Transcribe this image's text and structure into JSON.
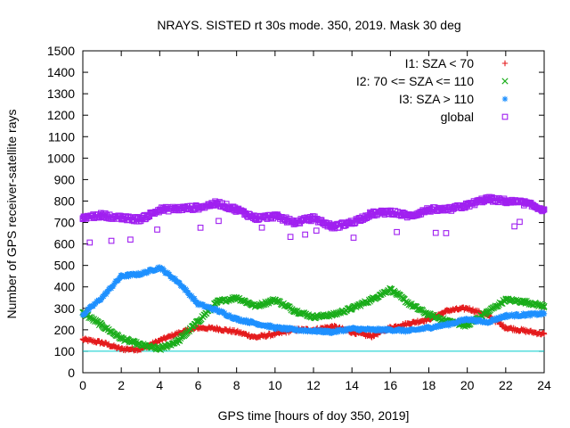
{
  "chart_data": {
    "type": "scatter",
    "title": "NRAYS. SISTED rt 30s mode. 350, 2019. Mask 30 deg",
    "xlabel": "GPS time [hours of doy 350, 2019]",
    "ylabel": "Number of GPS receiver-satellite rays",
    "xlim": [
      0,
      24
    ],
    "ylim": [
      0,
      1500
    ],
    "x_ticks": [
      "0",
      "2",
      "4",
      "6",
      "8",
      "10",
      "12",
      "14",
      "16",
      "18",
      "20",
      "22",
      "24"
    ],
    "y_ticks": [
      "0",
      "100",
      "200",
      "300",
      "400",
      "500",
      "600",
      "700",
      "800",
      "900",
      "1000",
      "1100",
      "1200",
      "1300",
      "1400",
      "1500"
    ],
    "reference_line": {
      "y": 100,
      "color": "#00cccc"
    },
    "legend_position": "top-right",
    "series": [
      {
        "name": "I1: SZA < 70",
        "symbol": "+",
        "color": "#e41a1c",
        "x": [
          0,
          1,
          2,
          3,
          4,
          5,
          6,
          7,
          8,
          9,
          10,
          11,
          12,
          13,
          14,
          15,
          16,
          17,
          18,
          19,
          20,
          21,
          22,
          23,
          24
        ],
        "y": [
          155,
          140,
          110,
          110,
          150,
          185,
          210,
          205,
          190,
          165,
          180,
          200,
          200,
          215,
          190,
          170,
          210,
          230,
          250,
          290,
          300,
          270,
          210,
          195,
          180
        ]
      },
      {
        "name": "I2: 70 <= SZA <= 110",
        "symbol": "x",
        "color": "#1aad1a",
        "x": [
          0,
          1,
          2,
          3,
          4,
          5,
          6,
          7,
          8,
          9,
          10,
          11,
          12,
          13,
          14,
          15,
          16,
          17,
          18,
          19,
          20,
          21,
          22,
          23,
          24
        ],
        "y": [
          280,
          220,
          160,
          130,
          110,
          150,
          240,
          330,
          350,
          310,
          340,
          290,
          260,
          270,
          300,
          340,
          390,
          320,
          270,
          240,
          220,
          280,
          340,
          330,
          310
        ]
      },
      {
        "name": "I3: SZA > 110",
        "symbol": "*",
        "color": "#1e90ff",
        "x": [
          0,
          1,
          2,
          3,
          4,
          5,
          6,
          7,
          8,
          9,
          10,
          11,
          12,
          13,
          14,
          15,
          16,
          17,
          18,
          19,
          20,
          21,
          22,
          23,
          24
        ],
        "y": [
          270,
          350,
          450,
          460,
          490,
          420,
          320,
          290,
          250,
          230,
          210,
          200,
          195,
          190,
          205,
          200,
          200,
          195,
          210,
          225,
          250,
          235,
          265,
          270,
          275
        ]
      },
      {
        "name": "global",
        "symbol": "square",
        "color": "#a020f0",
        "x": [
          0,
          1,
          2,
          3,
          4,
          5,
          6,
          7,
          8,
          9,
          10,
          11,
          12,
          13,
          14,
          15,
          16,
          17,
          18,
          19,
          20,
          21,
          22,
          23,
          24
        ],
        "y": [
          720,
          735,
          720,
          715,
          760,
          765,
          770,
          790,
          760,
          720,
          730,
          700,
          720,
          680,
          700,
          740,
          750,
          730,
          760,
          760,
          780,
          810,
          800,
          790,
          760
        ]
      }
    ]
  }
}
